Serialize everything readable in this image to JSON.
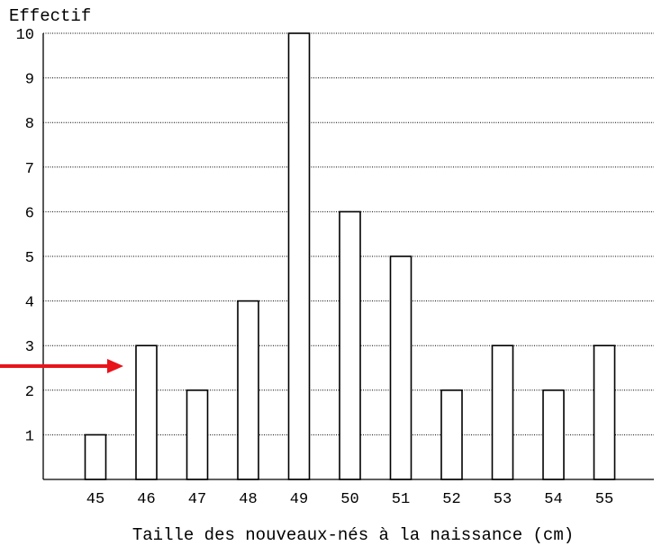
{
  "chart_data": {
    "type": "bar",
    "title": "",
    "xlabel": "Taille des nouveaux-nés à la naissance (cm)",
    "ylabel": "Effectif",
    "categories": [
      "45",
      "46",
      "47",
      "48",
      "49",
      "50",
      "51",
      "52",
      "53",
      "54",
      "55"
    ],
    "values": [
      1,
      3,
      2,
      4,
      10,
      6,
      5,
      2,
      3,
      2,
      3
    ],
    "ylim": [
      0,
      10
    ],
    "yticks": [
      "1",
      "2",
      "3",
      "4",
      "5",
      "6",
      "7",
      "8",
      "9",
      "10"
    ],
    "grid": "horizontal dotted",
    "bar_fill": "#ffffff",
    "bar_stroke": "#000000"
  },
  "annotation": {
    "type": "arrow",
    "color": "#e8141b",
    "points_to_category": "46"
  }
}
